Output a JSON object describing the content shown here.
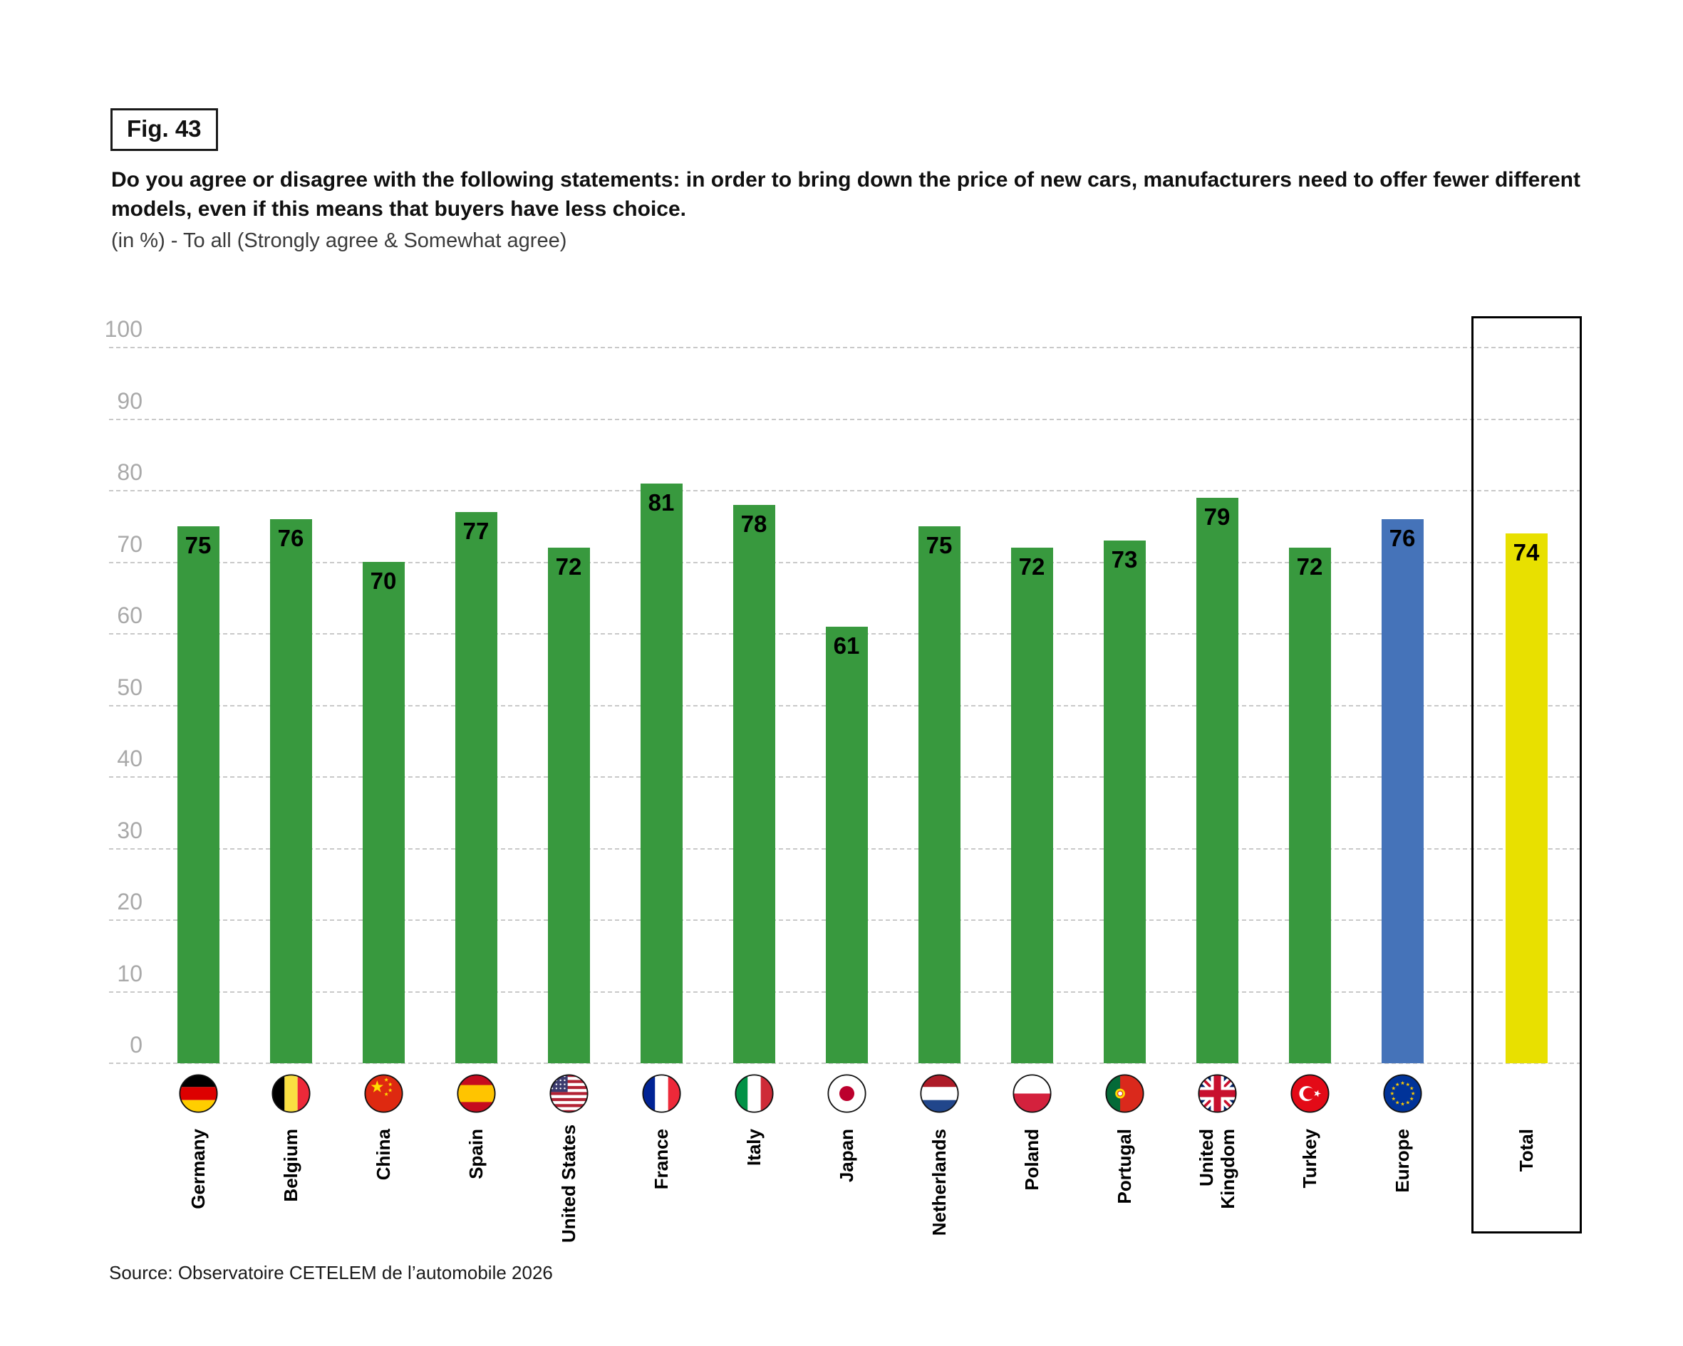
{
  "header": {
    "fig_label": "Fig. 43",
    "title": "Do you agree or disagree with the following statements: in order to bring down the price of new cars, manufacturers need to offer fewer different models, even if this means that buyers have less choice.",
    "subtitle": "(in %) - To all (Strongly agree & Somewhat agree)"
  },
  "footer": {
    "source": "Source: Observatoire CETELEM de l’automobile 2026"
  },
  "chart_data": {
    "type": "bar",
    "title": "Do you agree or disagree with the following statements: in order to bring down the price of new cars, manufacturers need to offer fewer different models, even if this means that buyers have less choice.",
    "subtitle": "(in %) - To all (Strongly agree & Somewhat agree)",
    "unit": "%",
    "categories": [
      "Germany",
      "Belgium",
      "China",
      "Spain",
      "United States",
      "France",
      "Italy",
      "Japan",
      "Netherlands",
      "Poland",
      "Portugal",
      "United\nKingdom",
      "Turkey",
      "Europe",
      "Total"
    ],
    "values": [
      75,
      76,
      70,
      77,
      72,
      81,
      78,
      61,
      75,
      72,
      73,
      79,
      72,
      76,
      74
    ],
    "flag_icons": [
      "germany-flag-icon",
      "belgium-flag-icon",
      "china-flag-icon",
      "spain-flag-icon",
      "united-states-flag-icon",
      "france-flag-icon",
      "italy-flag-icon",
      "japan-flag-icon",
      "netherlands-flag-icon",
      "poland-flag-icon",
      "portugal-flag-icon",
      "united-kingdom-flag-icon",
      "turkey-flag-icon",
      "europe-flag-icon",
      null
    ],
    "flag_codes": [
      "de",
      "be",
      "cn",
      "es",
      "us",
      "fr",
      "it",
      "jp",
      "nl",
      "pl",
      "pt",
      "gb",
      "tr",
      "eu",
      null
    ],
    "bar_colors": [
      "#38993E",
      "#38993E",
      "#38993E",
      "#38993E",
      "#38993E",
      "#38993E",
      "#38993E",
      "#38993E",
      "#38993E",
      "#38993E",
      "#38993E",
      "#38993E",
      "#38993E",
      "#4573B9",
      "#E8E000"
    ],
    "highlighted_column": "Total",
    "ylim": [
      0,
      100
    ],
    "yticks": [
      0,
      10,
      20,
      30,
      40,
      50,
      60,
      70,
      80,
      90,
      100
    ],
    "grid": "horizontal-dashed",
    "legend": false,
    "colors": {
      "bar_green": "#38993E",
      "bar_blue_europe": "#4573B9",
      "bar_yellow_total": "#E8E000",
      "gridline": "#c9c9c9",
      "tick_label": "#a9a9a9",
      "value_label": "#000000"
    }
  }
}
